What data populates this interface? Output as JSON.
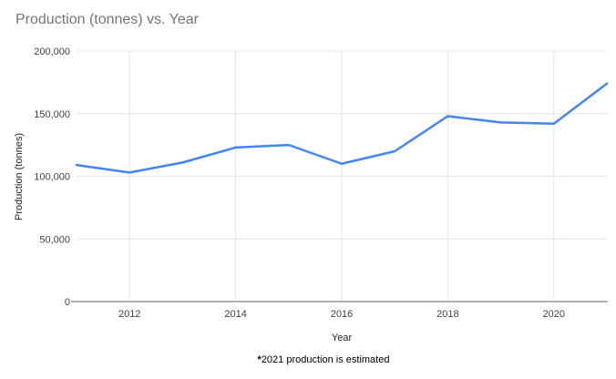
{
  "chart": {
    "footnote_marker": "*",
    "footnote_text": "2021 production is estimated",
    "colors": {
      "line": "#4285f4",
      "title": "#757575",
      "grid": "#e6e6e6",
      "axis_line": "#b0b0b0",
      "tick_label": "#424242"
    }
  },
  "chart_data": {
    "type": "line",
    "title": "Production (tonnes) vs. Year",
    "xlabel": "Year",
    "ylabel": "Production (tonnes)",
    "x": [
      2011,
      2012,
      2013,
      2014,
      2015,
      2016,
      2017,
      2018,
      2019,
      2020,
      2021
    ],
    "series": [
      {
        "name": "Production (tonnes)",
        "values": [
          109000,
          103000,
          111000,
          123000,
          125000,
          110000,
          120000,
          148000,
          143000,
          142000,
          174000
        ]
      }
    ],
    "xlim": [
      2011,
      2021
    ],
    "ylim": [
      0,
      200000
    ],
    "x_ticks": [
      2012,
      2014,
      2016,
      2018,
      2020
    ],
    "x_tick_labels": [
      "2012",
      "2014",
      "2016",
      "2018",
      "2020"
    ],
    "y_ticks": [
      0,
      50000,
      100000,
      150000,
      200000
    ],
    "y_tick_labels": [
      "0",
      "50,000",
      "100,000",
      "150,000",
      "200,000"
    ],
    "grid": true,
    "legend_position": "none",
    "annotation": "*2021 production is estimated"
  }
}
